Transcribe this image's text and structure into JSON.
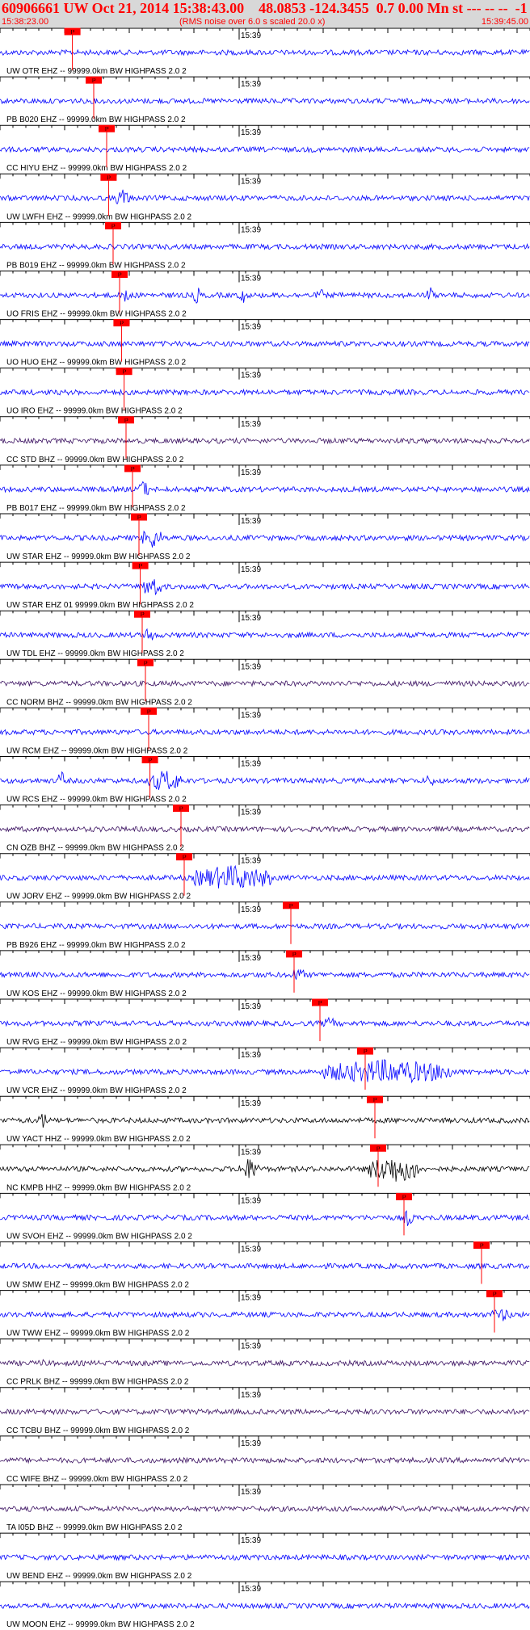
{
  "header": {
    "title": "60906661 UW Oct 21, 2014 15:38:43.00    48.0853 -124.3455  0.7 0.00 Mn st --- -- --  -1",
    "start_time": "15:38:23.00",
    "subtitle": "(RMS noise over 6.0 s scaled 20.0 x)",
    "end_time": "15:39:45.00"
  },
  "time_axis": {
    "start_s": 0,
    "end_s": 82,
    "minute_label": "15:39",
    "minute_at_s": 37
  },
  "pick_label": "P",
  "colors": {
    "title": "#ff0000",
    "header_bg": "#d8d8d8",
    "pick": "#ff0000",
    "axis": "#000000"
  },
  "traces": [
    {
      "label": "UW OTR EHZ -- 99999.0km BW  HIGHPASS  2.0  2",
      "color": "#0000ff",
      "pick_s": 11.2,
      "bursts": []
    },
    {
      "label": "PB B020 EHZ -- 99999.0km BW  HIGHPASS  2.0  2",
      "color": "#0000ff",
      "pick_s": 14.5,
      "bursts": []
    },
    {
      "label": "CC HIYU EHZ -- 99999.0km BW  HIGHPASS  2.0  2",
      "color": "#0000ff",
      "pick_s": 16.5,
      "bursts": []
    },
    {
      "label": "UW LWFH EHZ -- 99999.0km BW  HIGHPASS  2.0  2",
      "color": "#0000ff",
      "pick_s": 16.8,
      "bursts": [
        [
          18,
          20,
          12
        ]
      ]
    },
    {
      "label": "PB B019 EHZ -- 99999.0km BW  HIGHPASS  2.0  2",
      "color": "#0000ff",
      "pick_s": 17.5,
      "bursts": []
    },
    {
      "label": "UO FRIS EHZ -- 99999.0km BW  HIGHPASS  2.0  2",
      "color": "#0000ff",
      "pick_s": 18.5,
      "bursts": [
        [
          19,
          20,
          14
        ],
        [
          30,
          31,
          12
        ],
        [
          37,
          38,
          12
        ],
        [
          49,
          50,
          10
        ],
        [
          66,
          67,
          12
        ]
      ]
    },
    {
      "label": "UO HUO EHZ -- 99999.0km BW  HIGHPASS  2.0  2",
      "color": "#0000ff",
      "pick_s": 18.8,
      "bursts": []
    },
    {
      "label": "UO IRO EHZ -- 99999.0km BW  HIGHPASS  2.0  2",
      "color": "#0000ff",
      "pick_s": 19.2,
      "bursts": []
    },
    {
      "label": "CC STD BHZ -- 99999.0km BW  HIGHPASS  2.0  2",
      "color": "#3a1060",
      "pick_s": 19.5,
      "bursts": []
    },
    {
      "label": "PB B017 EHZ -- 99999.0km BW  HIGHPASS  2.0  2",
      "color": "#0000ff",
      "pick_s": 20.5,
      "bursts": [
        [
          21,
          23,
          12
        ]
      ]
    },
    {
      "label": "UW STAR EHZ -- 99999.0km BW  HIGHPASS  2.0  2",
      "color": "#0000ff",
      "pick_s": 21.5,
      "bursts": [
        [
          22,
          25,
          14
        ]
      ]
    },
    {
      "label": "UW STAR EHZ 01 99999.0km BW  HIGHPASS  2.0  2",
      "color": "#0000ff",
      "pick_s": 21.7,
      "bursts": [
        [
          22,
          25,
          14
        ]
      ]
    },
    {
      "label": "UW TDL EHZ -- 99999.0km BW  HIGHPASS  2.0  2",
      "color": "#0000ff",
      "pick_s": 22.0,
      "bursts": [
        [
          22.5,
          24,
          12
        ]
      ]
    },
    {
      "label": "CC NORM BHZ -- 99999.0km BW  HIGHPASS  2.0  2",
      "color": "#3a1060",
      "pick_s": 22.5,
      "bursts": []
    },
    {
      "label": "UW RCM EHZ -- 99999.0km BW  HIGHPASS  2.0  2",
      "color": "#0000ff",
      "pick_s": 23.0,
      "bursts": []
    },
    {
      "label": "UW RCS EHZ -- 99999.0km BW  HIGHPASS  2.0  2",
      "color": "#0000ff",
      "pick_s": 23.2,
      "bursts": [
        [
          9,
          10,
          13
        ],
        [
          23,
          28,
          14
        ],
        [
          66,
          67,
          10
        ]
      ]
    },
    {
      "label": "CN OZB BHZ -- 99999.0km BW  HIGHPASS  2.0  2",
      "color": "#3a1060",
      "pick_s": 28.0,
      "bursts": []
    },
    {
      "label": "UW JORV EHZ -- 99999.0km BW  HIGHPASS  2.0  2",
      "color": "#0000ff",
      "pick_s": 28.5,
      "bursts": [
        [
          30,
          42,
          16
        ]
      ]
    },
    {
      "label": "PB B926 EHZ -- 99999.0km BW  HIGHPASS  2.0  2",
      "color": "#0000ff",
      "pick_s": 45.0,
      "bursts": []
    },
    {
      "label": "UW KOS EHZ -- 99999.0km BW  HIGHPASS  2.0  2",
      "color": "#0000ff",
      "pick_s": 45.5,
      "bursts": [
        [
          45,
          47,
          10
        ]
      ]
    },
    {
      "label": "UW RVG EHZ -- 99999.0km BW  HIGHPASS  2.0  2",
      "color": "#0000ff",
      "pick_s": 49.5,
      "bursts": [
        [
          50,
          52,
          8
        ]
      ]
    },
    {
      "label": "UW VCR EHZ -- 99999.0km BW  HIGHPASS  2.0  2",
      "color": "#0000ff",
      "pick_s": 56.5,
      "bursts": [
        [
          50,
          70,
          16
        ]
      ]
    },
    {
      "label": "UW YACT HHZ -- 99999.0km BW  HIGHPASS  2.0  2",
      "color": "#000000",
      "pick_s": 58.0,
      "bursts": [
        [
          6,
          7,
          14
        ]
      ]
    },
    {
      "label": "NC KMPB HHZ -- 99999.0km BW  HIGHPASS  2.0  2",
      "color": "#000000",
      "pick_s": 58.5,
      "bursts": [
        [
          37,
          40,
          14
        ],
        [
          57,
          65,
          18
        ]
      ]
    },
    {
      "label": "UW SVOH EHZ -- 99999.0km BW  HIGHPASS  2.0  2",
      "color": "#0000ff",
      "pick_s": 62.5,
      "bursts": [
        [
          62.5,
          64,
          12
        ]
      ]
    },
    {
      "label": "UW SMW EHZ -- 99999.0km BW  HIGHPASS  2.0  2",
      "color": "#0000ff",
      "pick_s": 74.5,
      "bursts": []
    },
    {
      "label": "UW TWW EHZ -- 99999.0km BW  HIGHPASS  2.0  2",
      "color": "#0000ff",
      "pick_s": 76.5,
      "bursts": [
        [
          76,
          79,
          9
        ]
      ]
    },
    {
      "label": "CC PRLK BHZ -- 99999.0km BW  HIGHPASS  2.0  2",
      "color": "#3a1060",
      "pick_s": null,
      "bursts": [
        [
          6,
          7,
          6
        ]
      ]
    },
    {
      "label": "CC TCBU BHZ -- 99999.0km BW  HIGHPASS  2.0  2",
      "color": "#3a1060",
      "pick_s": null,
      "bursts": []
    },
    {
      "label": "CC WIFE BHZ -- 99999.0km BW  HIGHPASS  2.0  2",
      "color": "#3a1060",
      "pick_s": null,
      "bursts": []
    },
    {
      "label": "TA I05D BHZ -- 99999.0km BW  HIGHPASS  2.0  2",
      "color": "#3a1060",
      "pick_s": null,
      "bursts": []
    },
    {
      "label": "UW BEND EHZ -- 99999.0km BW  HIGHPASS  2.0  2",
      "color": "#0000ff",
      "pick_s": null,
      "bursts": []
    },
    {
      "label": "UW MOON EHZ -- 99999.0km BW  HIGHPASS  2.0  2",
      "color": "#0000ff",
      "pick_s": null,
      "bursts": []
    }
  ]
}
